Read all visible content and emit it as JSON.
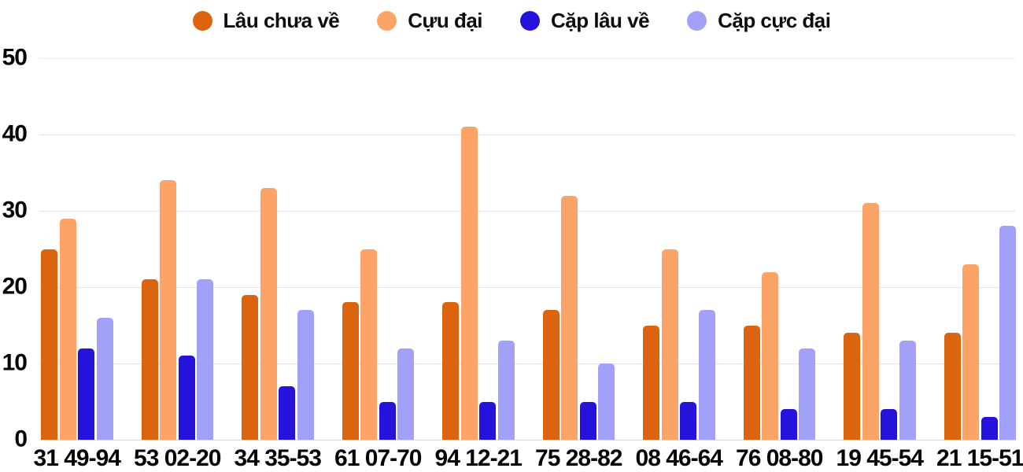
{
  "chart_data": {
    "type": "bar",
    "title": "",
    "xlabel": "",
    "ylabel": "",
    "ylim": [
      0,
      50
    ],
    "yticks": [
      0,
      10,
      20,
      30,
      40,
      50
    ],
    "grid": true,
    "legend_position": "top",
    "categories": [
      "31 49-94",
      "53 02-20",
      "34 35-53",
      "61 07-70",
      "94 12-21",
      "75 28-82",
      "08 46-64",
      "76 08-80",
      "19 45-54",
      "21 15-51"
    ],
    "series": [
      {
        "name": "Lâu chưa về",
        "color": "#DC640E",
        "values": [
          25,
          21,
          19,
          18,
          18,
          17,
          15,
          15,
          14,
          14
        ]
      },
      {
        "name": "Cựu đại",
        "color": "#FCA468",
        "values": [
          29,
          34,
          33,
          25,
          41,
          32,
          25,
          22,
          31,
          23
        ]
      },
      {
        "name": "Cặp lâu về",
        "color": "#2513DB",
        "values": [
          12,
          11,
          7,
          5,
          5,
          5,
          5,
          4,
          4,
          3
        ]
      },
      {
        "name": "Cặp cực đại",
        "color": "#A3A0F7",
        "values": [
          16,
          21,
          17,
          12,
          13,
          10,
          17,
          12,
          13,
          28
        ]
      }
    ]
  }
}
